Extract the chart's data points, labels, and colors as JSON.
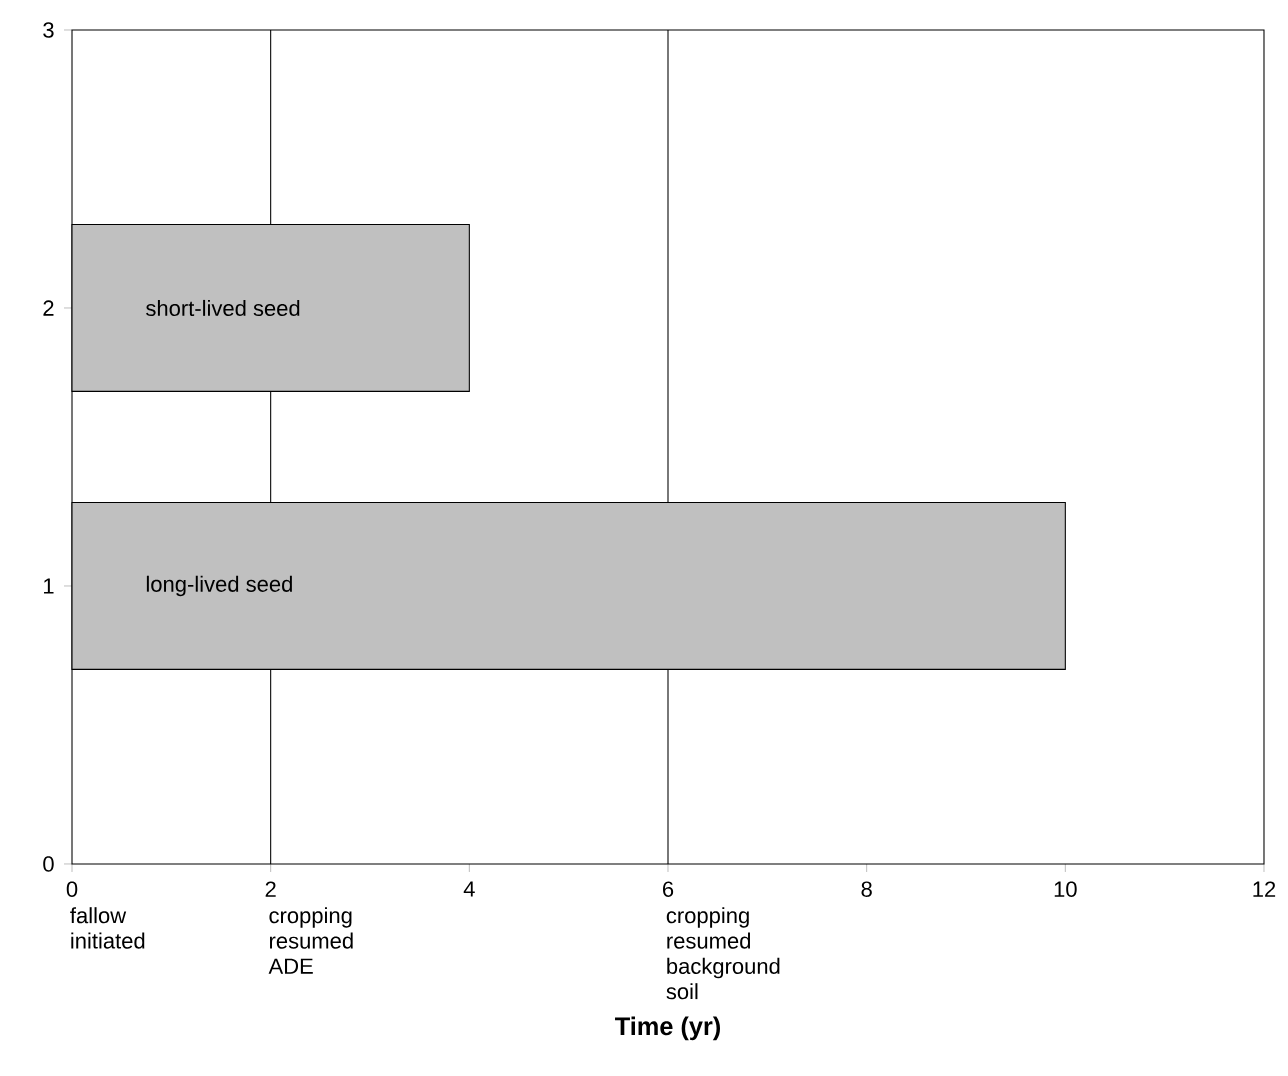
{
  "chart_data": {
    "type": "bar",
    "orientation": "horizontal",
    "xlabel": "Time (yr)",
    "x": [
      1,
      2
    ],
    "values": [
      10,
      4
    ],
    "color": "#c0c0c0",
    "value_labels": [
      "long-lived seed",
      "short-lived seed"
    ],
    "xlim": [
      0,
      12
    ],
    "xticks": [
      0,
      2,
      4,
      6,
      8,
      10,
      12
    ],
    "ylim": [
      0,
      3
    ],
    "yticks": [
      0,
      1,
      2,
      3
    ],
    "annotations": [
      "fallow initiated"
    ],
    "ref_lines": [
      {
        "axis": "x",
        "value": 2,
        "label": "cropping resumed ADE"
      },
      {
        "axis": "x",
        "value": 6,
        "label": "cropping resumed background soil"
      }
    ],
    "grid": false
  }
}
